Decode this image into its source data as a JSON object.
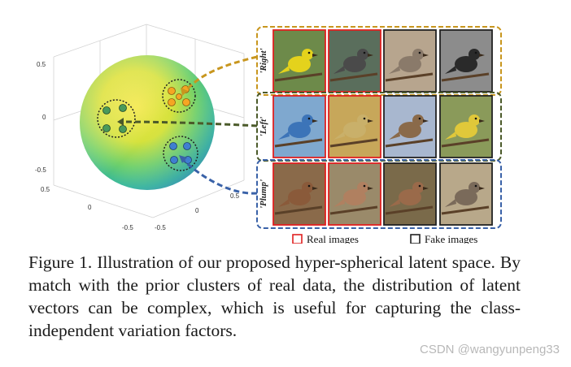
{
  "figure": {
    "axis_ticks": {
      "z": [
        "0.5",
        "0",
        "-0.5"
      ],
      "x_left": [
        "0.5",
        "0",
        "-0.5"
      ],
      "y_right": [
        "-0.5",
        "0",
        "0.5"
      ]
    },
    "rows": [
      {
        "label": "'Right'",
        "color": "#c8961e",
        "frames": [
          "real",
          "real",
          "fake",
          "fake"
        ]
      },
      {
        "label": "'Left'",
        "color": "#4b5a2a",
        "frames": [
          "real",
          "real",
          "fake",
          "fake"
        ]
      },
      {
        "label": "'Plump'",
        "color": "#3a62a8",
        "frames": [
          "real",
          "real",
          "fake",
          "fake"
        ]
      }
    ],
    "legend": {
      "real_label": "Real images",
      "real_color": "#e02020",
      "fake_label": "Fake images",
      "fake_color": "#222222"
    },
    "clusters": {
      "orange": "#f5a623",
      "green": "#4a9a5a",
      "blue": "#3f7fd0"
    }
  },
  "caption": "Figure 1. Illustration of our proposed hyper-spherical latent space. By match with the prior clusters of real data, the distribution of latent vectors can be complex, which is useful for capturing the class-independent variation factors.",
  "watermark": "CSDN @wangyunpeng33"
}
